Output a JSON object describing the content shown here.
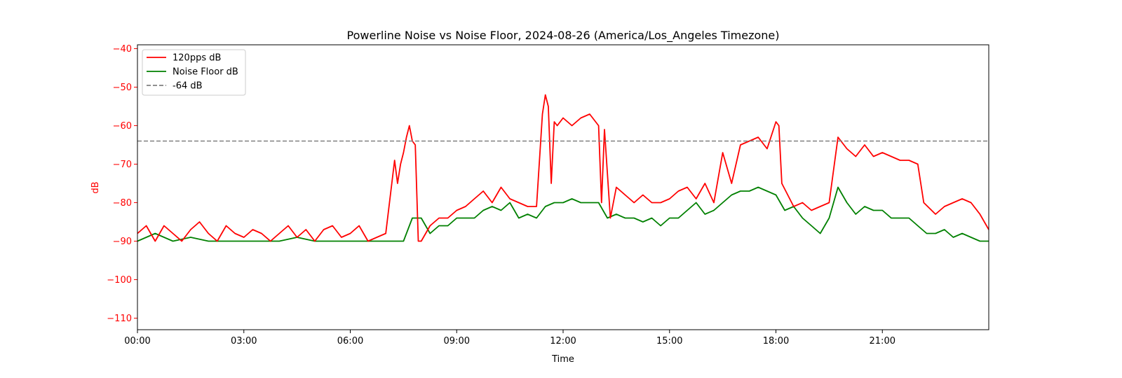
{
  "chart_data": {
    "type": "line",
    "title": "Powerline Noise vs Noise Floor, 2024-08-26 (America/Los_Angeles Timezone)",
    "xlabel": "Time",
    "ylabel": "dB",
    "ylim": [
      -113,
      -39
    ],
    "xlim": [
      "00:00",
      "24:00"
    ],
    "yticks": [
      -40,
      -50,
      -60,
      -70,
      -80,
      -90,
      -100,
      -110
    ],
    "ytick_labels": [
      "−40",
      "−50",
      "−60",
      "−70",
      "−80",
      "−90",
      "−100",
      "−110"
    ],
    "xticks": [
      "00:00",
      "03:00",
      "06:00",
      "09:00",
      "12:00",
      "15:00",
      "18:00",
      "21:00"
    ],
    "grid": false,
    "legend_position": "top-left",
    "colors": {
      "noise": "#ff0000",
      "floor": "#008000",
      "reference": "#808080",
      "ylabel": "#ff0000"
    },
    "series": [
      {
        "name": "120pps dB",
        "color": "#ff0000",
        "x": [
          "00:00",
          "00:15",
          "00:30",
          "00:45",
          "01:00",
          "01:15",
          "01:30",
          "01:45",
          "02:00",
          "02:15",
          "02:30",
          "02:45",
          "03:00",
          "03:15",
          "03:30",
          "03:45",
          "04:00",
          "04:15",
          "04:30",
          "04:45",
          "05:00",
          "05:15",
          "05:30",
          "05:45",
          "06:00",
          "06:15",
          "06:30",
          "06:45",
          "07:00",
          "07:15",
          "07:20",
          "07:25",
          "07:30",
          "07:35",
          "07:40",
          "07:45",
          "07:50",
          "07:55",
          "08:00",
          "08:15",
          "08:30",
          "08:45",
          "09:00",
          "09:15",
          "09:30",
          "09:45",
          "10:00",
          "10:15",
          "10:30",
          "10:45",
          "11:00",
          "11:15",
          "11:25",
          "11:30",
          "11:35",
          "11:40",
          "11:45",
          "11:50",
          "12:00",
          "12:15",
          "12:30",
          "12:45",
          "13:00",
          "13:05",
          "13:10",
          "13:20",
          "13:30",
          "13:45",
          "14:00",
          "14:15",
          "14:30",
          "14:45",
          "15:00",
          "15:15",
          "15:30",
          "15:45",
          "16:00",
          "16:15",
          "16:30",
          "16:45",
          "17:00",
          "17:15",
          "17:30",
          "17:45",
          "18:00",
          "18:05",
          "18:10",
          "18:30",
          "18:45",
          "19:00",
          "19:15",
          "19:30",
          "19:45",
          "20:00",
          "20:15",
          "20:30",
          "20:45",
          "21:00",
          "21:15",
          "21:30",
          "21:45",
          "22:00",
          "22:10",
          "22:30",
          "22:45",
          "23:00",
          "23:15",
          "23:30",
          "23:45",
          "24:00"
        ],
        "values": [
          -88,
          -86,
          -90,
          -86,
          -88,
          -90,
          -87,
          -85,
          -88,
          -90,
          -86,
          -88,
          -89,
          -87,
          -88,
          -90,
          -88,
          -86,
          -89,
          -87,
          -90,
          -87,
          -86,
          -89,
          -88,
          -86,
          -90,
          -89,
          -88,
          -69,
          -75,
          -70,
          -67,
          -63,
          -60,
          -64,
          -65,
          -90,
          -90,
          -86,
          -84,
          -84,
          -82,
          -81,
          -79,
          -77,
          -80,
          -76,
          -79,
          -80,
          -81,
          -81,
          -57,
          -52,
          -55,
          -75,
          -59,
          -60,
          -58,
          -60,
          -58,
          -57,
          -60,
          -80,
          -61,
          -84,
          -76,
          -78,
          -80,
          -78,
          -80,
          -80,
          -79,
          -77,
          -76,
          -79,
          -75,
          -80,
          -67,
          -75,
          -65,
          -64,
          -63,
          -66,
          -59,
          -60,
          -75,
          -81,
          -80,
          -82,
          -81,
          -80,
          -63,
          -66,
          -68,
          -65,
          -68,
          -67,
          -68,
          -69,
          -69,
          -70,
          -80,
          -83,
          -81,
          -80,
          -79,
          -80,
          -83,
          -87
        ]
      },
      {
        "name": "Noise Floor dB",
        "color": "#008000",
        "x": [
          "00:00",
          "00:30",
          "01:00",
          "01:30",
          "02:00",
          "02:30",
          "03:00",
          "03:30",
          "04:00",
          "04:30",
          "05:00",
          "05:30",
          "06:00",
          "06:30",
          "07:00",
          "07:15",
          "07:30",
          "07:45",
          "08:00",
          "08:15",
          "08:30",
          "08:45",
          "09:00",
          "09:15",
          "09:30",
          "09:45",
          "10:00",
          "10:15",
          "10:30",
          "10:45",
          "11:00",
          "11:15",
          "11:30",
          "11:45",
          "12:00",
          "12:15",
          "12:30",
          "12:45",
          "13:00",
          "13:15",
          "13:30",
          "13:45",
          "14:00",
          "14:15",
          "14:30",
          "14:45",
          "15:00",
          "15:15",
          "15:30",
          "15:45",
          "16:00",
          "16:15",
          "16:30",
          "16:45",
          "17:00",
          "17:15",
          "17:30",
          "17:45",
          "18:00",
          "18:15",
          "18:30",
          "18:45",
          "19:00",
          "19:15",
          "19:30",
          "19:45",
          "20:00",
          "20:15",
          "20:30",
          "20:45",
          "21:00",
          "21:15",
          "21:30",
          "21:45",
          "22:00",
          "22:15",
          "22:30",
          "22:45",
          "23:00",
          "23:15",
          "23:30",
          "23:45",
          "24:00"
        ],
        "values": [
          -90,
          -88,
          -90,
          -89,
          -90,
          -90,
          -90,
          -90,
          -90,
          -89,
          -90,
          -90,
          -90,
          -90,
          -90,
          -90,
          -90,
          -84,
          -84,
          -88,
          -86,
          -86,
          -84,
          -84,
          -84,
          -82,
          -81,
          -82,
          -80,
          -84,
          -83,
          -84,
          -81,
          -80,
          -80,
          -79,
          -80,
          -80,
          -80,
          -84,
          -83,
          -84,
          -84,
          -85,
          -84,
          -86,
          -84,
          -84,
          -82,
          -80,
          -83,
          -82,
          -80,
          -78,
          -77,
          -77,
          -76,
          -77,
          -78,
          -82,
          -81,
          -84,
          -86,
          -88,
          -84,
          -76,
          -80,
          -83,
          -81,
          -82,
          -82,
          -84,
          -84,
          -84,
          -86,
          -88,
          -88,
          -87,
          -89,
          -88,
          -89,
          -90,
          -90
        ]
      },
      {
        "name": "-64 dB",
        "color": "#808080",
        "x": [
          "00:00",
          "24:00"
        ],
        "values": [
          -64,
          -64
        ]
      }
    ]
  }
}
